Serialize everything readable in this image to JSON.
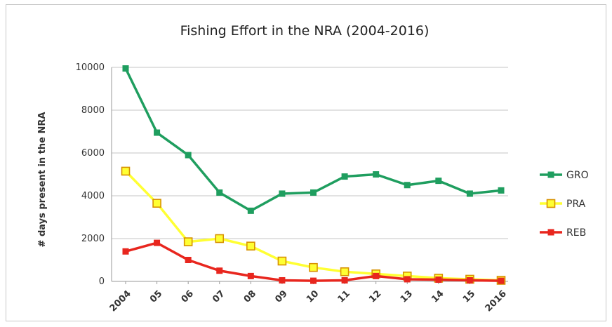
{
  "chart_data": {
    "type": "line",
    "title": "Fishing Effort in the NRA (2004-2016)",
    "ylabel": "# days present in the NRA",
    "xlabel": "",
    "categories": [
      "2004",
      "05",
      "06",
      "07",
      "08",
      "09",
      "10",
      "11",
      "12",
      "13",
      "14",
      "15",
      "2016"
    ],
    "ylim": [
      0,
      10000
    ],
    "yticks": [
      "0",
      "2000",
      "4000",
      "6000",
      "8000",
      "10000"
    ],
    "grid": true,
    "legend_position": "right",
    "series": [
      {
        "name": "GRO",
        "color": "#1f9e5f",
        "marker": "square-filled",
        "values": [
          9950,
          6950,
          5900,
          4150,
          3300,
          4100,
          4150,
          4900,
          5000,
          4500,
          4700,
          4100,
          4250
        ]
      },
      {
        "name": "PRA",
        "color": "#ffff33",
        "marker": "square-hollow",
        "marker_edge": "#d79100",
        "values": [
          5150,
          3650,
          1850,
          2000,
          1650,
          950,
          650,
          450,
          350,
          250,
          150,
          100,
          50
        ]
      },
      {
        "name": "REB",
        "color": "#e8261e",
        "marker": "square-filled",
        "values": [
          1400,
          1800,
          1000,
          500,
          250,
          50,
          30,
          50,
          250,
          100,
          80,
          50,
          30
        ]
      }
    ]
  }
}
